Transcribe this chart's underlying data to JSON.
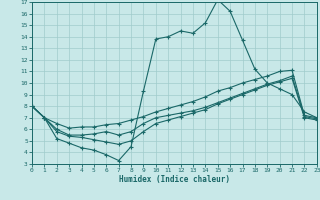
{
  "xlabel": "Humidex (Indice chaleur)",
  "bg_color": "#c8e8e8",
  "grid_color": "#a0cccc",
  "line_color": "#1a6868",
  "xlim": [
    0,
    23
  ],
  "ylim": [
    3,
    17
  ],
  "xticks": [
    0,
    1,
    2,
    3,
    4,
    5,
    6,
    7,
    8,
    9,
    10,
    11,
    12,
    13,
    14,
    15,
    16,
    17,
    18,
    19,
    20,
    21,
    22,
    23
  ],
  "yticks": [
    3,
    4,
    5,
    6,
    7,
    8,
    9,
    10,
    11,
    12,
    13,
    14,
    15,
    16,
    17
  ],
  "curve1_x": [
    0,
    1,
    2,
    3,
    4,
    5,
    6,
    7,
    8,
    9,
    10,
    11,
    12,
    13,
    14,
    15,
    16,
    17,
    18,
    19,
    20,
    21,
    22,
    23
  ],
  "curve1_y": [
    8.0,
    7.0,
    5.2,
    4.8,
    4.4,
    4.2,
    3.8,
    3.3,
    4.5,
    9.3,
    13.8,
    14.0,
    14.5,
    14.3,
    15.2,
    17.2,
    16.2,
    13.7,
    11.2,
    10.0,
    9.5,
    9.0,
    7.5,
    7.0
  ],
  "curve2_x": [
    0,
    1,
    2,
    3,
    4,
    5,
    6,
    7,
    8,
    9,
    10,
    11,
    12,
    13,
    14,
    15,
    16,
    17,
    18,
    19,
    20,
    21,
    22,
    23
  ],
  "curve2_y": [
    8.0,
    7.0,
    6.5,
    6.1,
    6.2,
    6.2,
    6.4,
    6.5,
    6.8,
    7.1,
    7.5,
    7.8,
    8.1,
    8.4,
    8.8,
    9.3,
    9.6,
    10.0,
    10.3,
    10.6,
    11.0,
    11.1,
    7.2,
    7.0
  ],
  "curve3_x": [
    0,
    1,
    2,
    3,
    4,
    5,
    6,
    7,
    8,
    9,
    10,
    11,
    12,
    13,
    14,
    15,
    16,
    17,
    18,
    19,
    20,
    21,
    22,
    23
  ],
  "curve3_y": [
    8.0,
    7.0,
    5.8,
    5.4,
    5.3,
    5.1,
    4.9,
    4.7,
    5.0,
    5.8,
    6.5,
    6.8,
    7.1,
    7.4,
    7.7,
    8.2,
    8.6,
    9.0,
    9.4,
    9.8,
    10.1,
    10.4,
    7.0,
    6.8
  ],
  "curve4_x": [
    0,
    1,
    2,
    3,
    4,
    5,
    6,
    7,
    8,
    9,
    10,
    11,
    12,
    13,
    14,
    15,
    16,
    17,
    18,
    19,
    20,
    21,
    22,
    23
  ],
  "curve4_y": [
    8.0,
    7.0,
    6.0,
    5.5,
    5.5,
    5.6,
    5.8,
    5.5,
    5.8,
    6.5,
    7.0,
    7.2,
    7.4,
    7.6,
    7.9,
    8.3,
    8.7,
    9.1,
    9.5,
    9.9,
    10.2,
    10.6,
    7.1,
    6.9
  ]
}
